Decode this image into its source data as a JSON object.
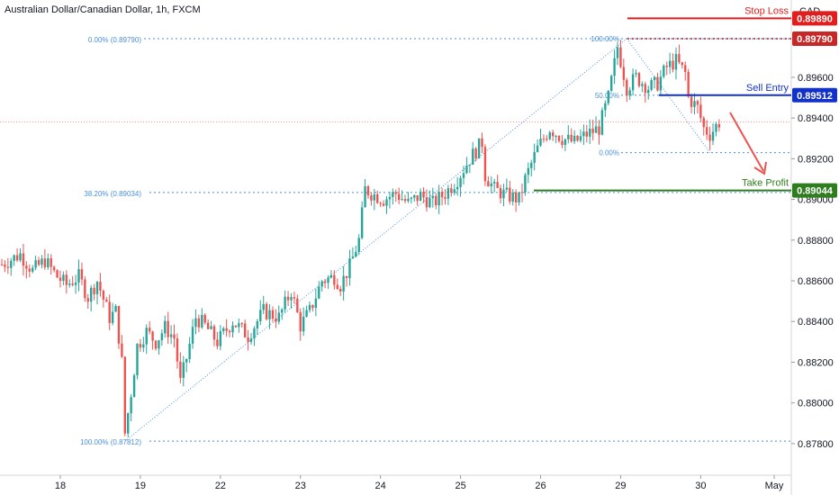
{
  "title": "Australian Dollar/Canadian Dollar, 1h, FXCM",
  "currency": "CAD",
  "colors": {
    "up": "#26a69a",
    "down": "#ef5350",
    "stop": "#e01e1e",
    "entry": "#1231c8",
    "target": "#2e7d1e",
    "fib": "#4a90d9",
    "grid": "#e8e8e8",
    "axis": "#131722"
  },
  "chart_data": {
    "type": "candlestick",
    "ylim": [
      0.8768,
      0.8998
    ],
    "y_ticks": [
      "0.89600",
      "0.89400",
      "0.89200",
      "0.89000",
      "0.88800",
      "0.88600",
      "0.88400",
      "0.88200",
      "0.88000",
      "0.87800"
    ],
    "x_ticks": [
      "18",
      "19",
      "22",
      "23",
      "24",
      "25",
      "26",
      "29",
      "30",
      "May"
    ],
    "current_price": 0.8938,
    "levels": {
      "stop_loss": {
        "label": "Stop Loss",
        "value": "0.89890"
      },
      "high": {
        "value": "0.89790"
      },
      "sell_entry": {
        "label": "Sell Entry",
        "value": "0.89512"
      },
      "take_profit": {
        "label": "Take Profit",
        "value": "0.89044"
      }
    },
    "fib_labels": {
      "f0": "0.00% (0.89790)",
      "f382": "38.20% (0.89034)",
      "f100": "100.00% (0.87812)",
      "r100": "100.00%",
      "r50": "50.00%",
      "r0": "0.00%"
    },
    "anchors": [
      [
        0,
        0.8868
      ],
      [
        6,
        0.8873
      ],
      [
        10,
        0.8865
      ],
      [
        14,
        0.887
      ],
      [
        18,
        0.8862
      ],
      [
        21,
        0.8858
      ],
      [
        25,
        0.8862
      ],
      [
        28,
        0.8852
      ],
      [
        31,
        0.886
      ],
      [
        35,
        0.8842
      ],
      [
        37,
        0.8845
      ],
      [
        39,
        0.882
      ],
      [
        40,
        0.8785
      ],
      [
        42,
        0.8805
      ],
      [
        44,
        0.8828
      ],
      [
        47,
        0.8835
      ],
      [
        50,
        0.883
      ],
      [
        53,
        0.8837
      ],
      [
        56,
        0.8832
      ],
      [
        58,
        0.881
      ],
      [
        60,
        0.8822
      ],
      [
        63,
        0.8842
      ],
      [
        66,
        0.8838
      ],
      [
        70,
        0.883
      ],
      [
        75,
        0.884
      ],
      [
        80,
        0.8833
      ],
      [
        85,
        0.8845
      ],
      [
        90,
        0.8842
      ],
      [
        94,
        0.8855
      ],
      [
        97,
        0.8838
      ],
      [
        100,
        0.8845
      ],
      [
        104,
        0.886
      ],
      [
        108,
        0.8862
      ],
      [
        110,
        0.8858
      ],
      [
        113,
        0.8867
      ],
      [
        116,
        0.888
      ],
      [
        118,
        0.8905
      ],
      [
        120,
        0.8903
      ],
      [
        124,
        0.89
      ],
      [
        128,
        0.8903
      ],
      [
        132,
        0.8898
      ],
      [
        136,
        0.8902
      ],
      [
        140,
        0.8898
      ],
      [
        144,
        0.8903
      ],
      [
        148,
        0.891
      ],
      [
        152,
        0.892
      ],
      [
        156,
        0.8928
      ],
      [
        157,
        0.8912
      ],
      [
        160,
        0.8905
      ],
      [
        164,
        0.8902
      ],
      [
        168,
        0.89
      ],
      [
        170,
        0.891
      ],
      [
        174,
        0.8925
      ],
      [
        178,
        0.8935
      ],
      [
        182,
        0.893
      ],
      [
        186,
        0.8928
      ],
      [
        190,
        0.8932
      ],
      [
        194,
        0.8935
      ],
      [
        197,
        0.895
      ],
      [
        200,
        0.8975
      ],
      [
        203,
        0.8955
      ],
      [
        206,
        0.896
      ],
      [
        210,
        0.8955
      ],
      [
        213,
        0.8957
      ],
      [
        216,
        0.8965
      ],
      [
        219,
        0.8968
      ],
      [
        222,
        0.8962
      ],
      [
        223,
        0.895
      ],
      [
        226,
        0.8945
      ],
      [
        228,
        0.8935
      ],
      [
        230,
        0.8932
      ],
      [
        233,
        0.8938
      ]
    ]
  }
}
